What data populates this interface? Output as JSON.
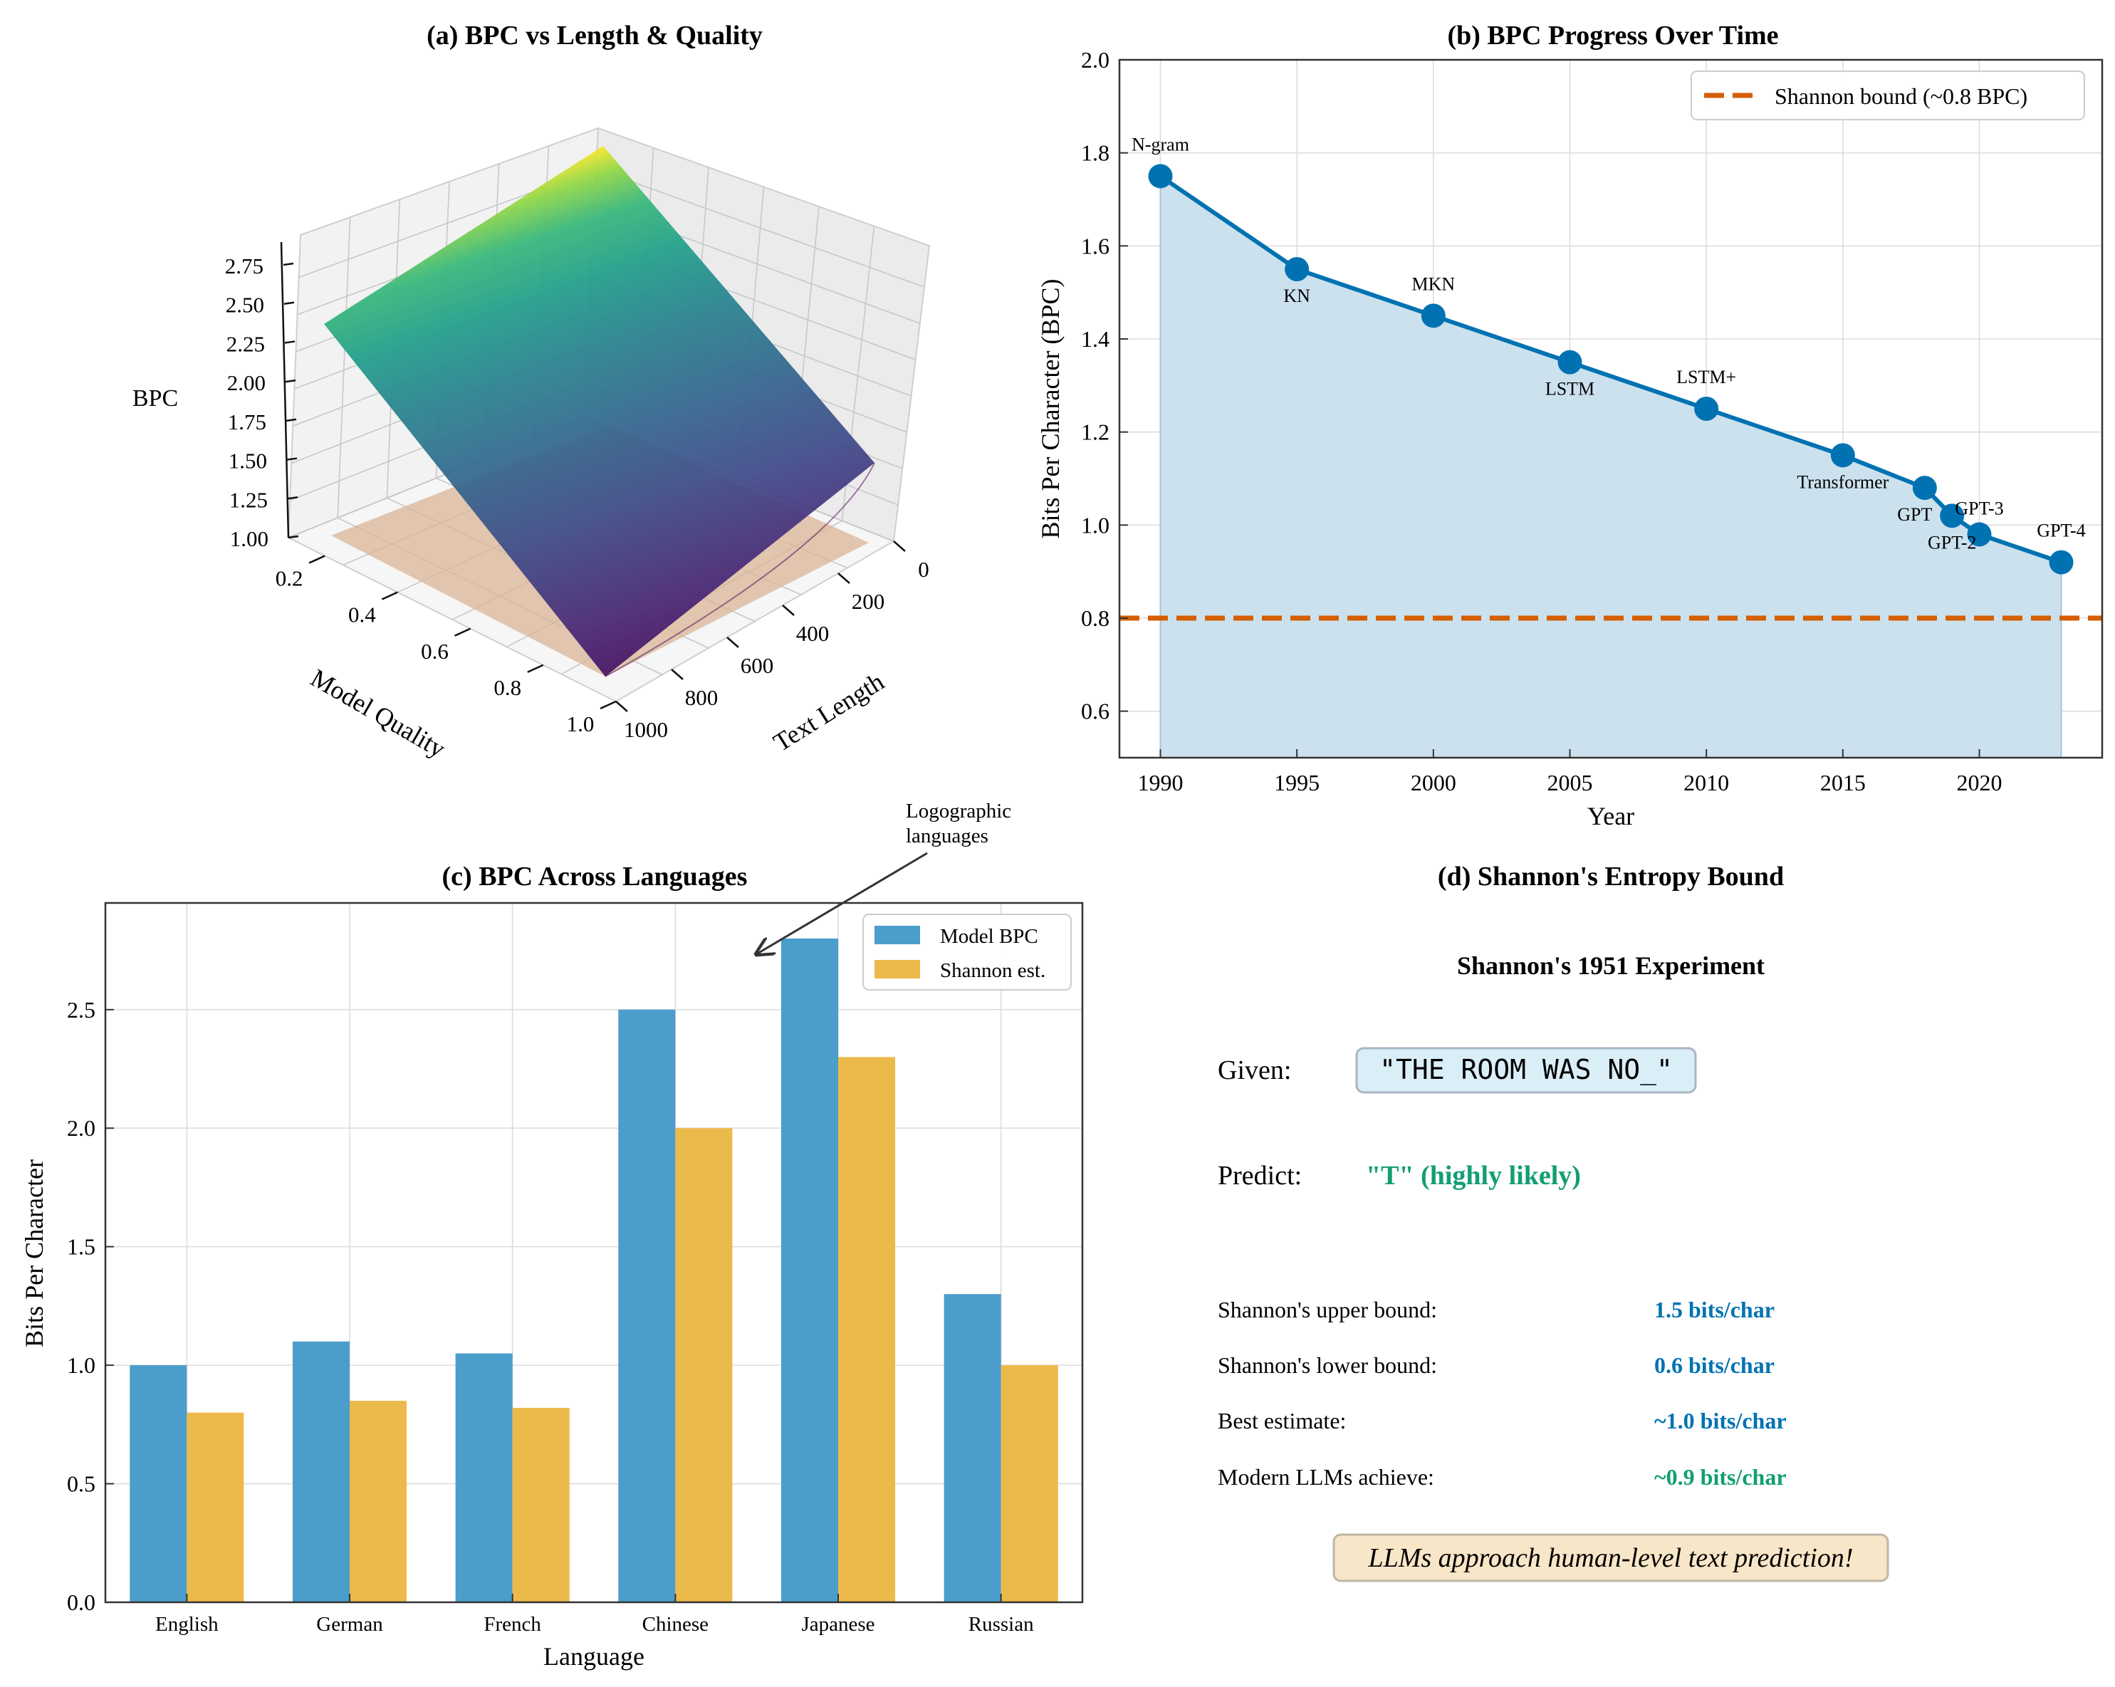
{
  "colors": {
    "blue": "#0072b2",
    "blue_fill": "#cce1ee",
    "bar_blue": "#4b9dcb",
    "bar_orange": "#ecba4a",
    "orange_line": "#d55e00",
    "green": "#129e73",
    "plane": "#d9b496"
  },
  "chart_data": [
    {
      "id": "a",
      "type": "surface3d",
      "title": "(a) BPC vs Length & Quality",
      "xlabel": "Text Length",
      "ylabel": "Model Quality",
      "zlabel": "BPC",
      "x_ticks": [
        "0",
        "200",
        "400",
        "600",
        "800",
        "1000"
      ],
      "y_ticks": [
        "0.2",
        "0.4",
        "0.6",
        "0.8",
        "1.0"
      ],
      "z_ticks": [
        "1.00",
        "1.25",
        "1.50",
        "1.75",
        "2.00",
        "2.25",
        "2.50",
        "2.75"
      ],
      "xlim": [
        0,
        1000
      ],
      "ylim": [
        0.1,
        1.0
      ],
      "zlim": [
        1.0,
        2.75
      ],
      "reference_plane_bpc": 1.0,
      "surface_corners": [
        {
          "length": 0,
          "quality": 0.1,
          "bpc": 2.85
        },
        {
          "length": 1000,
          "quality": 0.1,
          "bpc": 2.32
        },
        {
          "length": 0,
          "quality": 1.0,
          "bpc": 1.7
        },
        {
          "length": 1000,
          "quality": 1.0,
          "bpc": 1.05
        }
      ]
    },
    {
      "id": "b",
      "type": "line",
      "title": "(b) BPC Progress Over Time",
      "xlabel": "Year",
      "ylabel": "Bits Per Character (BPC)",
      "xlim": [
        1988.5,
        2024.5
      ],
      "ylim": [
        0.5,
        2.0
      ],
      "x_ticks": [
        1990,
        1995,
        2000,
        2005,
        2010,
        2015,
        2020
      ],
      "y_ticks": [
        "0.6",
        "0.8",
        "1.0",
        "1.2",
        "1.4",
        "1.6",
        "1.8",
        "2.0"
      ],
      "points": [
        {
          "year": 1990,
          "bpc": 1.75,
          "label": "N-gram",
          "pos": "above"
        },
        {
          "year": 1995,
          "bpc": 1.55,
          "label": "KN",
          "pos": "below"
        },
        {
          "year": 2000,
          "bpc": 1.45,
          "label": "MKN",
          "pos": "above"
        },
        {
          "year": 2005,
          "bpc": 1.35,
          "label": "LSTM",
          "pos": "below"
        },
        {
          "year": 2010,
          "bpc": 1.25,
          "label": "LSTM+",
          "pos": "above"
        },
        {
          "year": 2015,
          "bpc": 1.15,
          "label": "Transformer",
          "pos": "below"
        },
        {
          "year": 2018,
          "bpc": 1.08,
          "label": "GPT",
          "pos": "belowleft"
        },
        {
          "year": 2019,
          "bpc": 1.02,
          "label": "GPT-2",
          "pos": "below"
        },
        {
          "year": 2020,
          "bpc": 0.98,
          "label": "GPT-3",
          "pos": "aboveleft"
        },
        {
          "year": 2023,
          "bpc": 0.92,
          "label": "GPT-4",
          "pos": "above"
        }
      ],
      "shannon_bound": 0.8,
      "legend": "Shannon bound (~0.8 BPC)"
    },
    {
      "id": "c",
      "type": "bar",
      "title": "(c) BPC Across Languages",
      "xlabel": "Language",
      "ylabel": "Bits Per Character",
      "ylim": [
        0,
        2.95
      ],
      "y_ticks": [
        "0.0",
        "0.5",
        "1.0",
        "1.5",
        "2.0",
        "2.5"
      ],
      "categories": [
        "English",
        "German",
        "French",
        "Chinese",
        "Japanese",
        "Russian"
      ],
      "series": [
        {
          "name": "Model BPC",
          "values": [
            1.0,
            1.1,
            1.05,
            2.5,
            2.8,
            1.3
          ]
        },
        {
          "name": "Shannon est.",
          "values": [
            0.8,
            0.85,
            0.82,
            2.0,
            2.3,
            1.0
          ]
        }
      ],
      "annotation": [
        "Logographic",
        "languages"
      ]
    }
  ],
  "panel_d": {
    "title": "(d) Shannon's Entropy Bound",
    "subtitle": "Shannon's 1951 Experiment",
    "given_label": "Given:",
    "given_text": "\"THE ROOM WAS NO_\"",
    "predict_label": "Predict:",
    "predict_text": "\"T\" (highly likely)",
    "rows": [
      {
        "label": "Shannon's upper bound:",
        "value": "1.5 bits/char",
        "color": "#0072b2"
      },
      {
        "label": "Shannon's lower bound:",
        "value": "0.6 bits/char",
        "color": "#0072b2"
      },
      {
        "label": "Best estimate:",
        "value": "~1.0 bits/char",
        "color": "#0072b2"
      },
      {
        "label": "Modern LLMs achieve:",
        "value": "~0.9 bits/char",
        "color": "#129e73"
      }
    ],
    "footer": "LLMs approach human-level text prediction!"
  }
}
